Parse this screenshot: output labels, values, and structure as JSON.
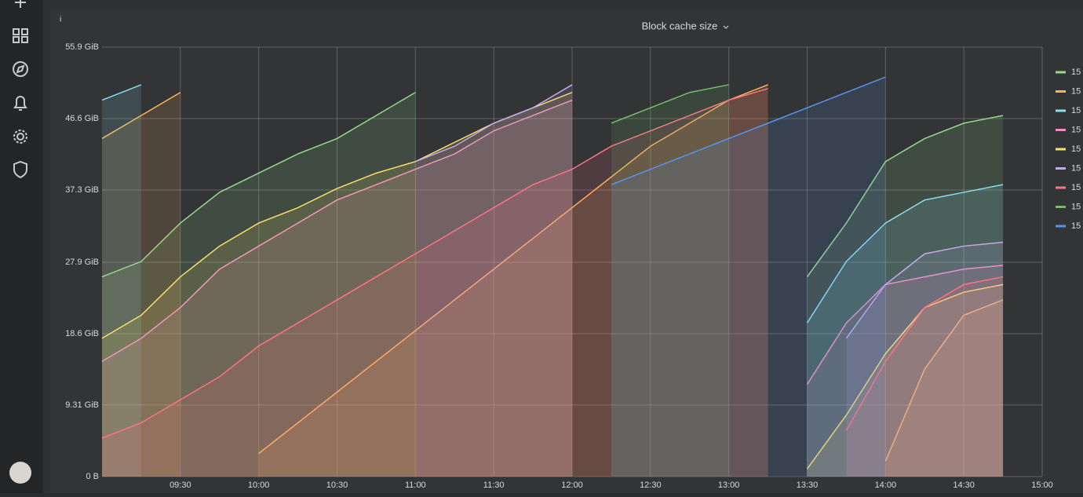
{
  "chart_data": {
    "type": "area",
    "title": "Block cache size",
    "grid": true,
    "legend": "right",
    "x": [
      540,
      555,
      570,
      585,
      600,
      615,
      630,
      645,
      660,
      675,
      690,
      705,
      720,
      735,
      750,
      765,
      780,
      795,
      810,
      825,
      840,
      855,
      870,
      885,
      900
    ],
    "xlim": [
      540,
      900
    ],
    "xticks": [
      {
        "value": 570,
        "label": "09:30"
      },
      {
        "value": 600,
        "label": "10:00"
      },
      {
        "value": 630,
        "label": "10:30"
      },
      {
        "value": 660,
        "label": "11:00"
      },
      {
        "value": 690,
        "label": "11:30"
      },
      {
        "value": 720,
        "label": "12:00"
      },
      {
        "value": 750,
        "label": "12:30"
      },
      {
        "value": 780,
        "label": "13:00"
      },
      {
        "value": 810,
        "label": "13:30"
      },
      {
        "value": 840,
        "label": "14:00"
      },
      {
        "value": 870,
        "label": "14:30"
      },
      {
        "value": 900,
        "label": "15:00"
      }
    ],
    "ylim": [
      0,
      55.9
    ],
    "yticks": [
      {
        "value": 0,
        "label": "0 B"
      },
      {
        "value": 9.31,
        "label": "9.31 GiB"
      },
      {
        "value": 18.6,
        "label": "18.6 GiB"
      },
      {
        "value": 27.9,
        "label": "27.9 GiB"
      },
      {
        "value": 37.3,
        "label": "37.3 GiB"
      },
      {
        "value": 46.6,
        "label": "46.6 GiB"
      },
      {
        "value": 55.9,
        "label": "55.9 GiB"
      }
    ],
    "series": [
      {
        "name": "15",
        "color": "#96d98d",
        "values": [
          26,
          28,
          33,
          37,
          39.5,
          42,
          44,
          47,
          50,
          null,
          null,
          null,
          null,
          null,
          null,
          null,
          null,
          null,
          26,
          33,
          41,
          44,
          46,
          47,
          null
        ]
      },
      {
        "name": "15",
        "color": "#ffb357",
        "values": [
          44,
          47,
          50,
          null,
          3,
          7,
          11,
          15,
          19,
          23,
          27,
          31,
          35,
          39,
          43,
          46,
          49,
          51,
          null,
          null,
          2,
          14,
          21,
          23,
          null
        ]
      },
      {
        "name": "15",
        "color": "#8ae0ee",
        "values": [
          49,
          51,
          null,
          null,
          null,
          null,
          null,
          null,
          null,
          null,
          null,
          null,
          null,
          null,
          null,
          null,
          null,
          null,
          20,
          28,
          33,
          36,
          37,
          38,
          null
        ]
      },
      {
        "name": "15",
        "color": "#f28cc8",
        "values": [
          15,
          18,
          22,
          27,
          30,
          33,
          36,
          38,
          40,
          42,
          45,
          47,
          49,
          null,
          null,
          null,
          null,
          null,
          12,
          20,
          25,
          26,
          27,
          27.5,
          null
        ]
      },
      {
        "name": "15",
        "color": "#fade6a",
        "values": [
          18,
          21,
          26,
          30,
          33,
          35,
          37.5,
          39.5,
          41,
          43.5,
          46,
          48,
          50,
          null,
          null,
          null,
          null,
          null,
          1,
          8,
          16,
          22,
          24,
          25,
          null
        ]
      },
      {
        "name": "15",
        "color": "#c4a8f0",
        "values": [
          null,
          null,
          null,
          null,
          null,
          null,
          null,
          null,
          41,
          43,
          46,
          48,
          51,
          null,
          null,
          null,
          null,
          null,
          null,
          18,
          25,
          29,
          30,
          30.5,
          null
        ]
      },
      {
        "name": "15",
        "color": "#ff7383",
        "values": [
          5,
          7,
          10,
          13,
          17,
          20,
          23,
          26,
          29,
          32,
          35,
          38,
          40,
          43,
          45,
          47,
          49,
          50.5,
          null,
          6,
          15,
          22,
          25,
          26,
          null
        ]
      },
      {
        "name": "15",
        "color": "#73bf69",
        "values": [
          null,
          null,
          null,
          null,
          null,
          null,
          null,
          null,
          null,
          null,
          null,
          null,
          null,
          46,
          48,
          50,
          51,
          null,
          null,
          null,
          null,
          null,
          null,
          null,
          null
        ]
      },
      {
        "name": "15",
        "color": "#5794f2",
        "values": [
          null,
          null,
          null,
          null,
          null,
          null,
          null,
          null,
          null,
          null,
          null,
          null,
          null,
          38,
          40,
          42,
          44,
          46,
          48,
          50,
          52,
          null,
          null,
          null,
          null
        ]
      }
    ]
  }
}
